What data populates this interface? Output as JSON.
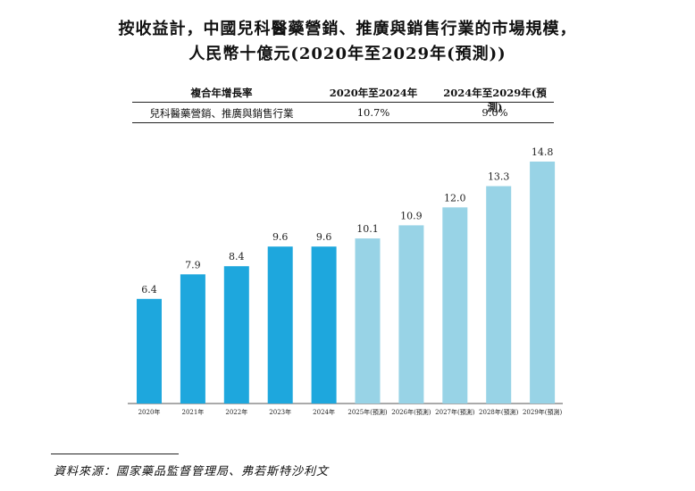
{
  "title_line1": "按收益計，中國兒科醫藥營銷、推廣與銷售行業的市場規模，",
  "title_line2": "人民幣十億元(2020年至2029年(預測))",
  "cagr_table": {
    "header": [
      "複合年增長率",
      "2020年至2024年",
      "2024年至2029年(預測)"
    ],
    "row": [
      "兒科醫藥營銷、推廣與銷售行業",
      "10.7%",
      "9.0%"
    ]
  },
  "chart_data": {
    "type": "bar",
    "title": "按收益計，中國兒科醫藥營銷、推廣與銷售行業的市場規模，人民幣十億元(2020年至2029年(預測))",
    "ylabel": "人民幣十億元",
    "categories": [
      "2020年",
      "2021年",
      "2022年",
      "2023年",
      "2024年",
      "2025年(預測)",
      "2026年(預測)",
      "2027年(預測)",
      "2028年(預測)",
      "2029年(預測)"
    ],
    "values": [
      6.4,
      7.9,
      8.4,
      9.6,
      9.6,
      10.1,
      10.9,
      12.0,
      13.3,
      14.8
    ],
    "forecast": [
      false,
      false,
      false,
      false,
      false,
      true,
      true,
      true,
      true,
      true
    ],
    "colors": {
      "actual": "#1ea7dd",
      "forecast": "#98d3e6"
    },
    "ylim": [
      0,
      14.8
    ]
  },
  "source": "資料來源：國家藥品監督管理局、弗若斯特沙利文"
}
